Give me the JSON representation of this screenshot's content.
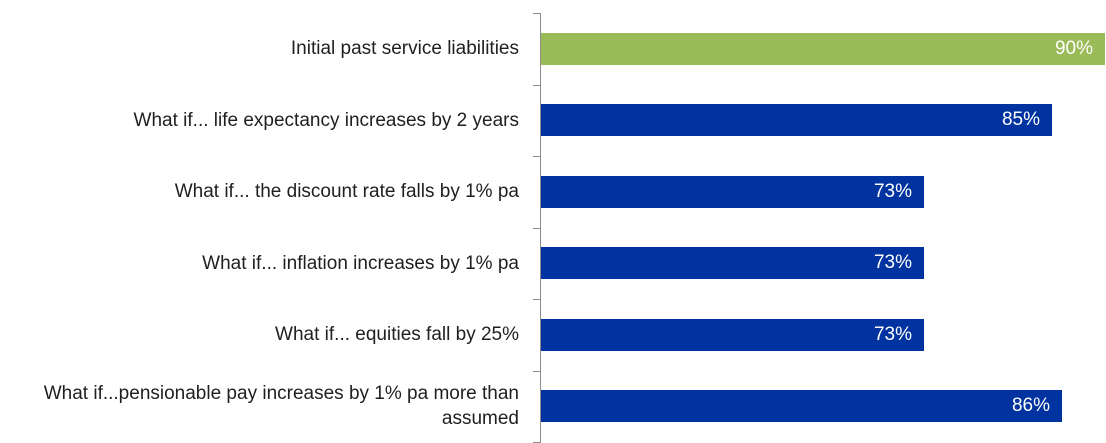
{
  "chart_data": {
    "type": "bar",
    "orientation": "horizontal",
    "categories": [
      "Initial past service liabilities",
      "What if... life expectancy increases by 2 years",
      "What if... the discount rate falls by 1% pa",
      "What if... inflation increases by 1% pa",
      "What if... equities fall by 25%",
      "What if...pensionable pay increases by 1% pa more than assumed"
    ],
    "values": [
      90,
      85,
      73,
      73,
      73,
      86
    ],
    "value_labels": [
      "90%",
      "85%",
      "73%",
      "73%",
      "73%",
      "86%"
    ],
    "colors": [
      "#9bbb59",
      "#0033a0",
      "#0033a0",
      "#0033a0",
      "#0033a0",
      "#0033a0"
    ],
    "xlim": [
      37,
      90
    ],
    "grid": false,
    "legend": "none"
  }
}
